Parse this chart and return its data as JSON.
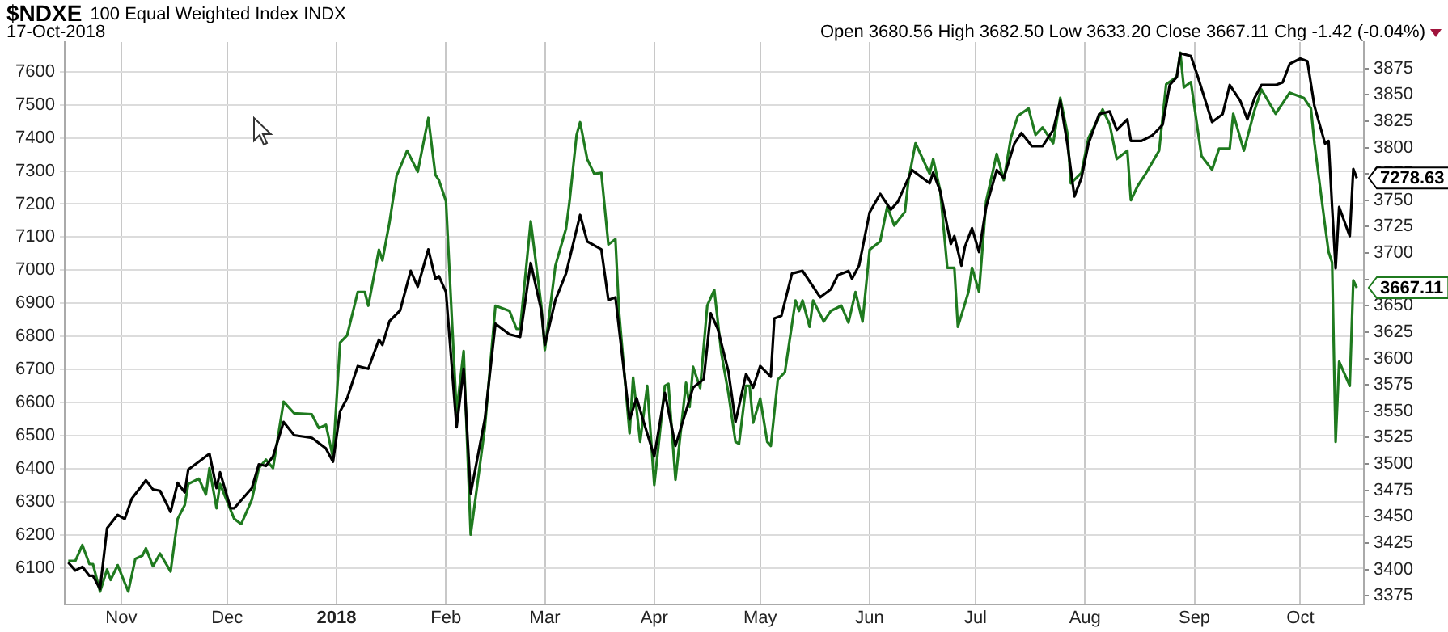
{
  "chart_data": {
    "type": "line",
    "title": "$NDXE",
    "subtitle": "17-Oct-2018",
    "annotations": [
      "100 Equal Weighted Index INDX",
      "Open 3680.56 High 3682.50 Low 3633.20 Close 3667.11 Chg -1.42 (-0.04%)"
    ],
    "xlim": [
      "2017-10-16",
      "2018-10-19"
    ],
    "xticks": [
      {
        "value": "2017-11-01",
        "label": "Nov"
      },
      {
        "value": "2017-12-01",
        "label": "Dec"
      },
      {
        "value": "2018-01-01",
        "label": "2018"
      },
      {
        "value": "2018-02-01",
        "label": "Feb"
      },
      {
        "value": "2018-03-01",
        "label": "Mar"
      },
      {
        "value": "2018-04-01",
        "label": "Apr"
      },
      {
        "value": "2018-05-01",
        "label": "May"
      },
      {
        "value": "2018-06-01",
        "label": "Jun"
      },
      {
        "value": "2018-07-01",
        "label": "Jul"
      },
      {
        "value": "2018-08-01",
        "label": "Aug"
      },
      {
        "value": "2018-09-01",
        "label": "Sep"
      },
      {
        "value": "2018-10-01",
        "label": "Oct"
      }
    ],
    "ylim": [
      5990,
      7690
    ],
    "yticks": [
      6100,
      6200,
      6300,
      6400,
      6500,
      6600,
      6700,
      6800,
      6900,
      7000,
      7100,
      7200,
      7300,
      7400,
      7500,
      7600
    ],
    "y2lim": [
      3367,
      3900
    ],
    "y2ticks": [
      3375,
      3400,
      3425,
      3450,
      3475,
      3500,
      3525,
      3550,
      3575,
      3600,
      3625,
      3650,
      {
        "value": 3675,
        "label": null
      },
      3700,
      3725,
      3750,
      3775,
      3800,
      3825,
      3850,
      3875
    ],
    "grid": true,
    "series": [
      {
        "color": "#000000",
        "x": [
          "2017-10-17",
          "2017-10-19",
          "2017-10-21",
          "2017-10-23",
          "2017-10-24",
          "2017-10-26",
          "2017-10-28",
          "2017-10-31",
          "2017-11-02",
          "2017-11-04",
          "2017-11-08",
          "2017-11-10",
          "2017-11-12",
          "2017-11-15",
          "2017-11-17",
          "2017-11-19",
          "2017-11-20",
          "2017-11-24",
          "2017-11-26",
          "2017-11-28",
          "2017-11-29",
          "2017-12-02",
          "2017-12-03",
          "2017-12-08",
          "2017-12-10",
          "2017-12-12",
          "2017-12-14",
          "2017-12-17",
          "2017-12-20",
          "2017-12-25",
          "2017-12-29",
          "2017-12-31",
          "2018-01-02",
          "2018-01-04",
          "2018-01-07",
          "2018-01-10",
          "2018-01-13",
          "2018-01-14",
          "2018-01-16",
          "2018-01-19",
          "2018-01-22",
          "2018-01-24",
          "2018-01-27",
          "2018-01-29",
          "2018-01-30",
          "2018-02-01",
          "2018-02-04",
          "2018-02-06",
          "2018-02-08",
          "2018-02-12",
          "2018-02-15",
          "2018-02-19",
          "2018-02-22",
          "2018-02-25",
          "2018-02-28",
          "2018-03-01",
          "2018-03-04",
          "2018-03-07",
          "2018-03-11",
          "2018-03-13",
          "2018-03-17",
          "2018-03-19",
          "2018-03-21",
          "2018-03-25",
          "2018-03-27",
          "2018-03-29",
          "2018-04-01",
          "2018-04-04",
          "2018-04-07",
          "2018-04-12",
          "2018-04-15",
          "2018-04-17",
          "2018-04-19",
          "2018-04-22",
          "2018-04-24",
          "2018-04-27",
          "2018-04-29",
          "2018-05-01",
          "2018-05-04",
          "2018-05-05",
          "2018-05-07",
          "2018-05-10",
          "2018-05-13",
          "2018-05-15",
          "2018-05-18",
          "2018-05-21",
          "2018-05-23",
          "2018-05-26",
          "2018-05-27",
          "2018-05-29",
          "2018-06-01",
          "2018-06-04",
          "2018-06-07",
          "2018-06-09",
          "2018-06-13",
          "2018-06-16",
          "2018-06-18",
          "2018-06-19",
          "2018-06-21",
          "2018-06-24",
          "2018-06-25",
          "2018-06-27",
          "2018-06-28",
          "2018-06-30",
          "2018-07-02",
          "2018-07-04",
          "2018-07-07",
          "2018-07-09",
          "2018-07-12",
          "2018-07-14",
          "2018-07-17",
          "2018-07-20",
          "2018-07-23",
          "2018-07-25",
          "2018-07-27",
          "2018-07-29",
          "2018-07-31",
          "2018-08-02",
          "2018-08-05",
          "2018-08-08",
          "2018-08-10",
          "2018-08-13",
          "2018-08-14",
          "2018-08-17",
          "2018-08-20",
          "2018-08-23",
          "2018-08-25",
          "2018-08-27",
          "2018-08-28",
          "2018-08-31",
          "2018-09-02",
          "2018-09-06",
          "2018-09-09",
          "2018-09-11",
          "2018-09-14",
          "2018-09-16",
          "2018-09-18",
          "2018-09-20",
          "2018-09-24",
          "2018-09-26",
          "2018-09-28",
          "2018-10-01",
          "2018-10-03",
          "2018-10-05",
          "2018-10-08",
          "2018-10-09",
          "2018-10-10",
          "2018-10-11",
          "2018-10-12",
          "2018-10-15",
          "2018-10-16",
          "2018-10-17"
        ],
        "values": [
          6116,
          6092,
          6103,
          6076,
          6076,
          6036,
          6220,
          6260,
          6248,
          6309,
          6365,
          6337,
          6333,
          6269,
          6357,
          6328,
          6397,
          6429,
          6445,
          6341,
          6389,
          6280,
          6280,
          6341,
          6413,
          6408,
          6437,
          6541,
          6501,
          6493,
          6461,
          6421,
          6573,
          6613,
          6710,
          6702,
          6790,
          6774,
          6846,
          6878,
          6998,
          6950,
          7063,
          6974,
          6982,
          6934,
          6525,
          6702,
          6325,
          6549,
          6838,
          6806,
          6798,
          7022,
          6878,
          6774,
          6910,
          6990,
          7167,
          7087,
          7063,
          6910,
          6918,
          6549,
          6613,
          6541,
          6437,
          6629,
          6469,
          6645,
          6670,
          6870,
          6822,
          6694,
          6541,
          6686,
          6645,
          6710,
          6678,
          6854,
          6862,
          6990,
          6998,
          6966,
          6918,
          6942,
          6985,
          6998,
          6974,
          7014,
          7175,
          7231,
          7183,
          7207,
          7303,
          7279,
          7263,
          7295,
          7239,
          7079,
          7103,
          7014,
          7071,
          7127,
          7055,
          7191,
          7303,
          7279,
          7383,
          7415,
          7375,
          7375,
          7424,
          7512,
          7383,
          7223,
          7279,
          7383,
          7472,
          7480,
          7424,
          7456,
          7391,
          7391,
          7407,
          7440,
          7560,
          7584,
          7656,
          7648,
          7584,
          7448,
          7472,
          7560,
          7512,
          7456,
          7520,
          7560,
          7560,
          7568,
          7624,
          7640,
          7632,
          7496,
          7383,
          7391,
          7191,
          7006,
          7191,
          7103,
          7306,
          7278.63
        ],
        "value_labels": [
          null,
          null,
          null,
          null,
          null,
          null,
          null,
          null,
          null,
          null,
          null,
          null,
          null,
          null,
          null,
          null,
          null,
          null,
          null,
          null,
          null,
          null,
          null,
          null,
          null,
          null,
          null,
          null,
          null,
          null,
          null,
          null,
          null,
          null,
          null,
          null,
          null,
          null,
          null,
          null,
          null,
          null,
          null,
          null,
          null,
          null,
          null,
          null,
          null,
          null,
          null,
          null,
          null,
          null,
          null,
          null,
          null,
          null,
          null,
          null,
          null,
          null,
          null,
          null,
          null,
          null,
          null,
          null,
          null,
          null,
          null,
          null,
          null,
          null,
          null,
          null,
          null,
          null,
          null,
          null,
          null,
          null,
          null,
          null,
          null,
          null,
          null,
          null,
          null,
          null,
          null,
          null,
          null,
          null,
          null,
          null,
          null,
          null,
          null,
          null,
          null,
          null,
          null,
          null,
          null,
          null,
          null,
          null,
          null,
          null,
          null,
          null,
          null,
          null,
          null,
          null,
          null,
          null,
          null,
          null,
          null,
          null,
          null,
          null,
          null,
          null,
          null,
          null,
          null,
          null,
          null,
          null,
          null,
          null,
          null,
          null,
          null,
          null,
          null,
          null,
          null,
          null,
          null,
          null,
          null,
          null,
          null,
          null,
          null,
          null,
          null,
          "7278.63"
        ]
      },
      {
        "color": "#1f7a1f",
        "axis": "y2",
        "x": [
          "2017-10-17",
          "2017-10-19",
          "2017-10-21",
          "2017-10-23",
          "2017-10-24",
          "2017-10-26",
          "2017-10-28",
          "2017-10-29",
          "2017-10-31",
          "2017-11-03",
          "2017-11-05",
          "2017-11-07",
          "2017-11-08",
          "2017-11-10",
          "2017-11-12",
          "2017-11-15",
          "2017-11-17",
          "2017-11-19",
          "2017-11-20",
          "2017-11-23",
          "2017-11-25",
          "2017-11-26",
          "2017-11-28",
          "2017-11-29",
          "2017-12-03",
          "2017-12-05",
          "2017-12-08",
          "2017-12-10",
          "2017-12-12",
          "2017-12-14",
          "2017-12-17",
          "2017-12-20",
          "2017-12-25",
          "2017-12-27",
          "2017-12-29",
          "2017-12-31",
          "2018-01-02",
          "2018-01-04",
          "2018-01-07",
          "2018-01-09",
          "2018-01-10",
          "2018-01-13",
          "2018-01-14",
          "2018-01-16",
          "2018-01-18",
          "2018-01-21",
          "2018-01-24",
          "2018-01-27",
          "2018-01-29",
          "2018-01-30",
          "2018-02-01",
          "2018-02-04",
          "2018-02-06",
          "2018-02-08",
          "2018-02-12",
          "2018-02-15",
          "2018-02-19",
          "2018-02-21",
          "2018-02-22",
          "2018-02-25",
          "2018-02-28",
          "2018-03-01",
          "2018-03-04",
          "2018-03-07",
          "2018-03-08",
          "2018-03-10",
          "2018-03-11",
          "2018-03-13",
          "2018-03-15",
          "2018-03-17",
          "2018-03-19",
          "2018-03-21",
          "2018-03-22",
          "2018-03-25",
          "2018-03-26",
          "2018-03-28",
          "2018-03-30",
          "2018-04-01",
          "2018-04-04",
          "2018-04-05",
          "2018-04-07",
          "2018-04-10",
          "2018-04-11",
          "2018-04-12",
          "2018-04-14",
          "2018-04-16",
          "2018-04-18",
          "2018-04-20",
          "2018-04-22",
          "2018-04-24",
          "2018-04-25",
          "2018-04-27",
          "2018-04-28",
          "2018-04-29",
          "2018-05-01",
          "2018-05-03",
          "2018-05-04",
          "2018-05-06",
          "2018-05-08",
          "2018-05-11",
          "2018-05-12",
          "2018-05-13",
          "2018-05-15",
          "2018-05-16",
          "2018-05-19",
          "2018-05-21",
          "2018-05-24",
          "2018-05-26",
          "2018-05-28",
          "2018-05-30",
          "2018-06-01",
          "2018-06-04",
          "2018-06-06",
          "2018-06-08",
          "2018-06-11",
          "2018-06-12",
          "2018-06-14",
          "2018-06-18",
          "2018-06-19",
          "2018-06-21",
          "2018-06-23",
          "2018-06-25",
          "2018-06-26",
          "2018-06-29",
          "2018-06-30",
          "2018-07-02",
          "2018-07-04",
          "2018-07-07",
          "2018-07-09",
          "2018-07-11",
          "2018-07-13",
          "2018-07-16",
          "2018-07-18",
          "2018-07-20",
          "2018-07-23",
          "2018-07-25",
          "2018-07-27",
          "2018-07-28",
          "2018-07-31",
          "2018-08-02",
          "2018-08-06",
          "2018-08-08",
          "2018-08-10",
          "2018-08-13",
          "2018-08-14",
          "2018-08-16",
          "2018-08-18",
          "2018-08-22",
          "2018-08-24",
          "2018-08-27",
          "2018-08-28",
          "2018-08-29",
          "2018-08-31",
          "2018-09-03",
          "2018-09-06",
          "2018-09-08",
          "2018-09-11",
          "2018-09-12",
          "2018-09-15",
          "2018-09-18",
          "2018-09-20",
          "2018-09-24",
          "2018-09-28",
          "2018-10-02",
          "2018-10-04",
          "2018-10-05",
          "2018-10-08",
          "2018-10-09",
          "2018-10-10",
          "2018-10-11",
          "2018-10-12",
          "2018-10-15",
          "2018-10-16",
          "2018-10-17"
        ],
        "values": [
          3408,
          3408,
          3423,
          3405,
          3405,
          3379,
          3400,
          3390,
          3404,
          3379,
          3410,
          3413,
          3420,
          3403,
          3415,
          3398,
          3448,
          3461,
          3481,
          3486,
          3471,
          3496,
          3458,
          3481,
          3448,
          3443,
          3466,
          3496,
          3504,
          3496,
          3559,
          3548,
          3547,
          3534,
          3537,
          3506,
          3615,
          3622,
          3663,
          3663,
          3650,
          3703,
          3693,
          3729,
          3773,
          3797,
          3777,
          3828,
          3774,
          3769,
          3749,
          3549,
          3607,
          3433,
          3534,
          3650,
          3645,
          3628,
          3628,
          3730,
          3650,
          3608,
          3688,
          3723,
          3749,
          3812,
          3824,
          3789,
          3775,
          3776,
          3708,
          3713,
          3645,
          3529,
          3582,
          3521,
          3574,
          3480,
          3574,
          3576,
          3485,
          3577,
          3554,
          3592,
          3572,
          3650,
          3665,
          3605,
          3567,
          3521,
          3519,
          3574,
          3574,
          3539,
          3562,
          3521,
          3517,
          3580,
          3587,
          3655,
          3645,
          3655,
          3630,
          3655,
          3635,
          3645,
          3650,
          3634,
          3663,
          3635,
          3703,
          3711,
          3744,
          3726,
          3739,
          3769,
          3804,
          3775,
          3789,
          3759,
          3686,
          3686,
          3630,
          3663,
          3686,
          3663,
          3749,
          3794,
          3769,
          3809,
          3830,
          3837,
          3812,
          3819,
          3804,
          3847,
          3814,
          3766,
          3776,
          3809,
          3836,
          3822,
          3789,
          3797,
          3750,
          3764,
          3774,
          3797,
          3860,
          3867,
          3890,
          3857,
          3862,
          3792,
          3779,
          3799,
          3799,
          3832,
          3797,
          3835,
          3855,
          3832,
          3852,
          3847,
          3837,
          3804,
          3726,
          3701,
          3691,
          3521,
          3597,
          3574,
          3674,
          3667.11
        ],
        "value_labels": [
          null,
          null,
          null,
          null,
          null,
          null,
          null,
          null,
          null,
          null,
          null,
          null,
          null,
          null,
          null,
          null,
          null,
          null,
          null,
          null,
          null,
          null,
          null,
          null,
          null,
          null,
          null,
          null,
          null,
          null,
          null,
          null,
          null,
          null,
          null,
          null,
          null,
          null,
          null,
          null,
          null,
          null,
          null,
          null,
          null,
          null,
          null,
          null,
          null,
          null,
          null,
          null,
          null,
          null,
          null,
          null,
          null,
          null,
          null,
          null,
          null,
          null,
          null,
          null,
          null,
          null,
          null,
          null,
          null,
          null,
          null,
          null,
          null,
          null,
          null,
          null,
          null,
          null,
          null,
          null,
          null,
          null,
          null,
          null,
          null,
          null,
          null,
          null,
          null,
          null,
          null,
          null,
          null,
          null,
          null,
          null,
          null,
          null,
          null,
          null,
          null,
          null,
          null,
          null,
          null,
          null,
          null,
          null,
          null,
          null,
          null,
          null,
          null,
          null,
          null,
          null,
          null,
          null,
          null,
          null,
          null,
          null,
          null,
          null,
          null,
          null,
          null,
          null,
          null,
          null,
          null,
          null,
          null,
          null,
          null,
          null,
          null,
          null,
          null,
          null,
          null,
          null,
          null,
          null,
          null,
          null,
          null,
          null,
          null,
          null,
          null,
          null,
          null,
          null,
          null,
          null,
          null,
          null,
          null,
          null,
          null,
          null,
          null,
          null,
          null,
          null,
          null,
          null,
          null,
          null,
          null,
          null,
          null,
          "3667.11"
        ]
      }
    ]
  }
}
